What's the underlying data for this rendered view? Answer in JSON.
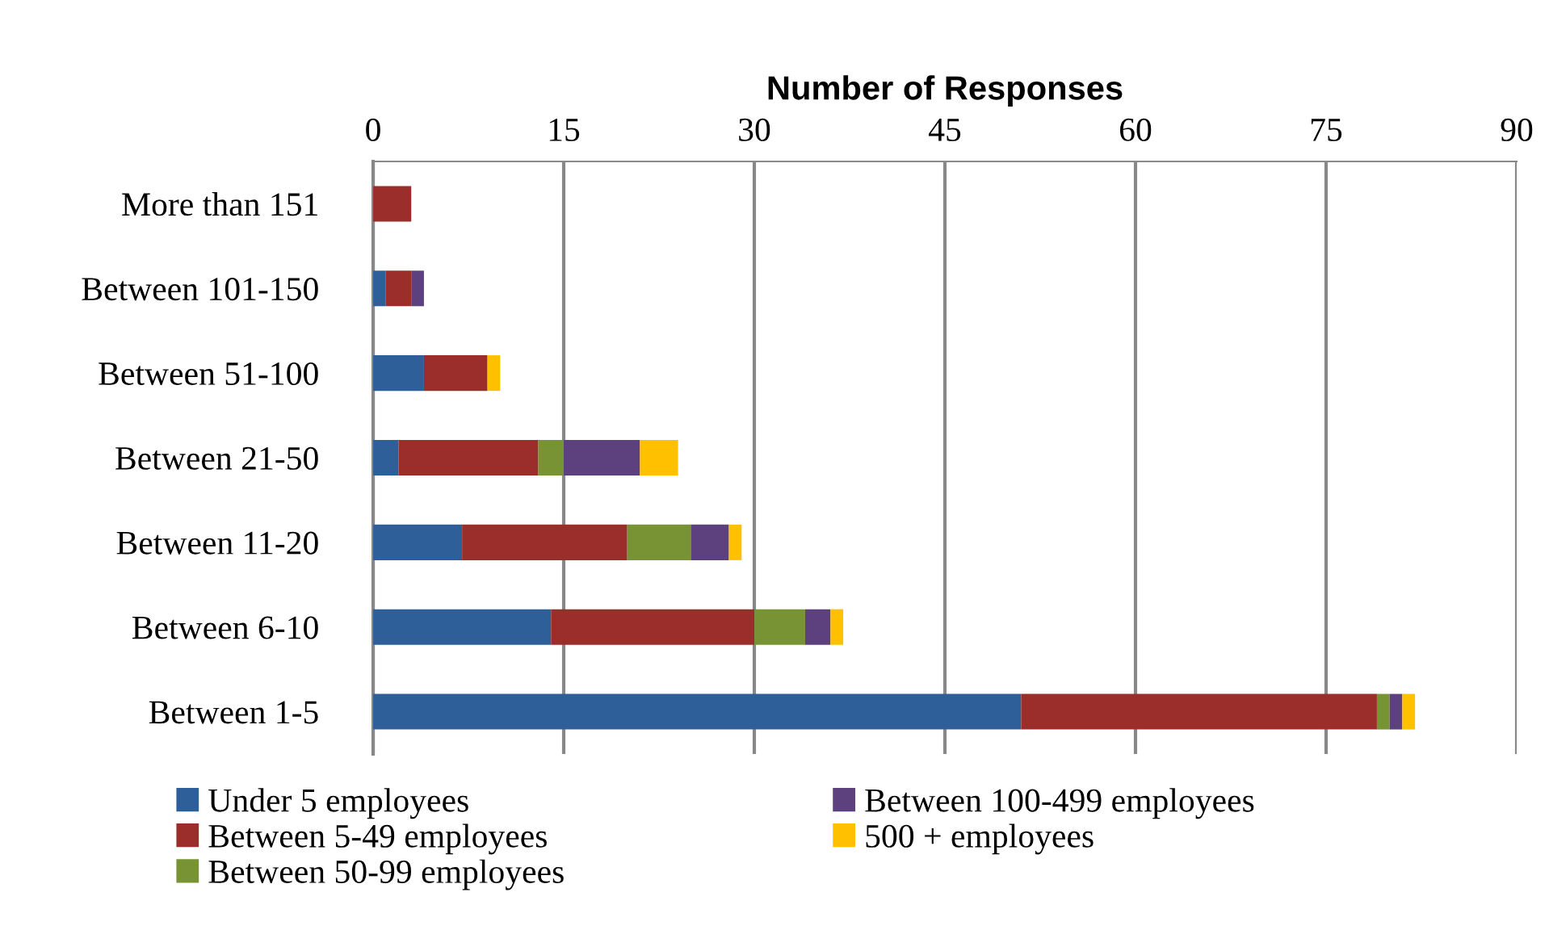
{
  "chart_data": {
    "type": "bar",
    "orientation": "horizontal",
    "stacked": true,
    "xlabel": "Number of Responses",
    "categories": [
      "More than 151",
      "Between 101-150",
      "Between 51-100",
      "Between 21-50",
      "Between 11-20",
      "Between 6-10",
      "Between 1-5"
    ],
    "series": [
      {
        "name": "Under 5 employees",
        "color": "#2e5f99",
        "values": [
          0,
          1,
          4,
          2,
          7,
          14,
          51
        ]
      },
      {
        "name": "Between 5-49 employees",
        "color": "#9b2d2b",
        "values": [
          3,
          2,
          5,
          11,
          13,
          16,
          28
        ]
      },
      {
        "name": "Between 50-99 employees",
        "color": "#779334",
        "values": [
          0,
          0,
          0,
          2,
          5,
          4,
          1
        ]
      },
      {
        "name": "Between 100-499 employees",
        "color": "#5d417e",
        "values": [
          0,
          1,
          0,
          6,
          3,
          2,
          1
        ]
      },
      {
        "name": "500 + employees",
        "color": "#ffc000",
        "values": [
          0,
          0,
          1,
          3,
          1,
          1,
          1
        ]
      }
    ],
    "xlim": [
      0,
      90
    ],
    "xticks": [
      0,
      15,
      30,
      45,
      60,
      75,
      90
    ],
    "grid": "x",
    "legend": "bottom"
  }
}
